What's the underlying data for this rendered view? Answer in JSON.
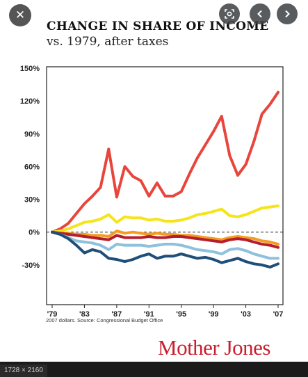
{
  "viewer": {
    "close_label": "✕",
    "image_dimensions": "1728 × 2160"
  },
  "figure": {
    "title": "CHANGE IN SHARE OF INCOME",
    "subtitle": "vs. 1979, after taxes",
    "source": "2007 dollars. Source: Congressional Budget Office",
    "logo": "Mother Jones"
  },
  "chart_data": {
    "type": "line",
    "title": "CHANGE IN SHARE OF INCOME",
    "subtitle": "vs. 1979, after taxes",
    "xlabel": "",
    "ylabel": "",
    "x": [
      1979,
      1980,
      1981,
      1982,
      1983,
      1984,
      1985,
      1986,
      1987,
      1988,
      1989,
      1990,
      1991,
      1992,
      1993,
      1994,
      1995,
      1996,
      1997,
      1998,
      1999,
      2000,
      2001,
      2002,
      2003,
      2004,
      2005,
      2006,
      2007
    ],
    "x_tick_values": [
      1979,
      1983,
      1987,
      1991,
      1995,
      1999,
      2003,
      2007
    ],
    "x_tick_labels": [
      "'79",
      "'83",
      "'87",
      "'91",
      "'95",
      "'99",
      "'03",
      "'07"
    ],
    "y_ticks": [
      150,
      120,
      90,
      60,
      30,
      0,
      -30
    ],
    "y_tick_labels": [
      "150%",
      "120%",
      "90%",
      "60%",
      "30%",
      "0%",
      "-30%"
    ],
    "ylim": [
      -60,
      150
    ],
    "xlim": [
      1979,
      2007
    ],
    "zero_line": "dashed",
    "series": [
      {
        "color": "#e8463c",
        "values": [
          0,
          3,
          8,
          17,
          26,
          33,
          41,
          76,
          32,
          60,
          51,
          47,
          33,
          45,
          33,
          33,
          37,
          53,
          68,
          80,
          92,
          106,
          70,
          52,
          62,
          83,
          108,
          117,
          128
        ]
      },
      {
        "color": "#f5e419",
        "values": [
          0,
          1,
          3,
          6,
          9,
          10,
          12,
          16,
          9,
          14,
          13,
          13,
          11,
          12,
          10,
          10,
          11,
          13,
          16,
          17,
          19,
          21,
          15,
          14,
          16,
          19,
          22,
          23,
          24
        ]
      },
      {
        "color": "#f39c1f",
        "values": [
          0,
          -1,
          -1,
          -2,
          -2,
          -3,
          -3,
          -4,
          1,
          -1,
          0,
          -1,
          -2,
          -1,
          -2,
          -2,
          -3,
          -3,
          -4,
          -5,
          -6,
          -7,
          -5,
          -4,
          -5,
          -6,
          -8,
          -9,
          -11
        ]
      },
      {
        "color": "#b51e2c",
        "values": [
          0,
          -1,
          -2,
          -3,
          -4,
          -5,
          -6,
          -7,
          -3,
          -5,
          -5,
          -5,
          -4,
          -5,
          -5,
          -4,
          -4,
          -5,
          -6,
          -7,
          -8,
          -9,
          -7,
          -6,
          -7,
          -9,
          -11,
          -12,
          -14
        ]
      },
      {
        "color": "#8fc0dc",
        "values": [
          0,
          -2,
          -5,
          -8,
          -9,
          -10,
          -12,
          -16,
          -11,
          -12,
          -12,
          -12,
          -13,
          -12,
          -11,
          -11,
          -12,
          -14,
          -16,
          -17,
          -18,
          -20,
          -16,
          -15,
          -17,
          -20,
          -22,
          -24,
          -24
        ]
      },
      {
        "color": "#1f4e79",
        "values": [
          0,
          -2,
          -6,
          -12,
          -19,
          -16,
          -18,
          -24,
          -25,
          -27,
          -25,
          -22,
          -20,
          -24,
          -22,
          -22,
          -20,
          -22,
          -24,
          -23,
          -25,
          -28,
          -26,
          -24,
          -27,
          -29,
          -30,
          -32,
          -29
        ]
      }
    ]
  }
}
